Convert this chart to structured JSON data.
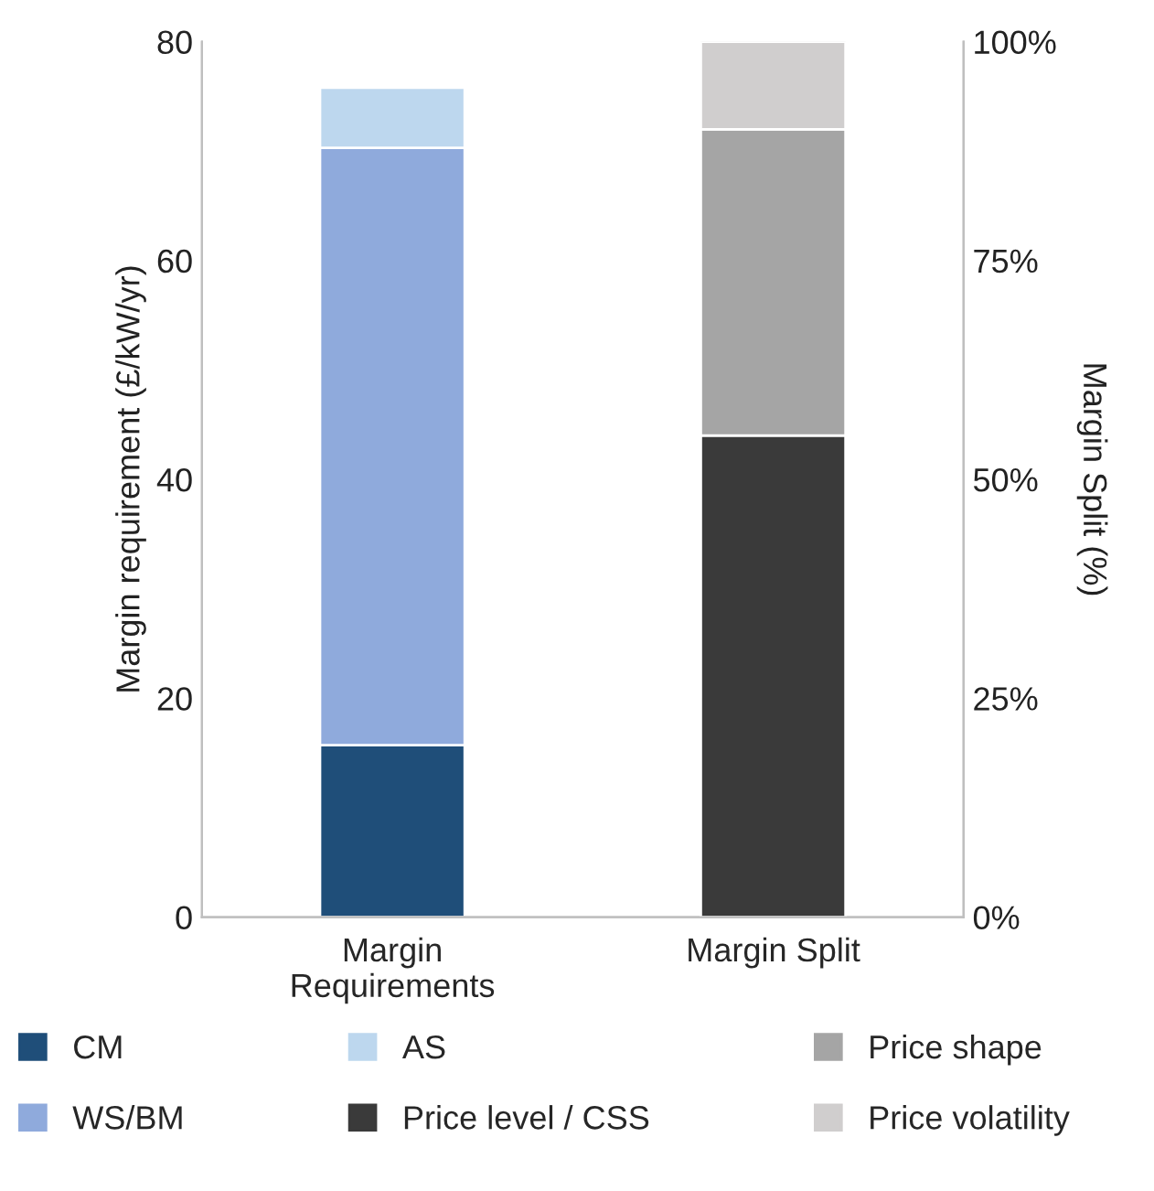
{
  "chart_data": {
    "type": "bar",
    "stacked": true,
    "categories": [
      "Margin\nRequirements",
      "Margin Split"
    ],
    "ylabel": "Margin requirement (£/kW/yr)",
    "y2label": "Margin Split (%)",
    "ylim": [
      0,
      80
    ],
    "yticks": [
      0,
      20,
      40,
      60,
      80
    ],
    "y2lim": [
      0,
      100
    ],
    "y2ticks": [
      {
        "value": 0,
        "label": "0%"
      },
      {
        "value": 25,
        "label": "25%"
      },
      {
        "value": 50,
        "label": "50%"
      },
      {
        "value": 75,
        "label": "75%"
      },
      {
        "value": 100,
        "label": "100%"
      }
    ],
    "legend": "bottom",
    "grid": false,
    "series": [
      {
        "name": "CM",
        "color": "#1f4e79",
        "values": [
          15.7,
          null
        ]
      },
      {
        "name": "WS/BM",
        "color": "#8faadc",
        "values": [
          54.6,
          null
        ]
      },
      {
        "name": "AS",
        "color": "#bdd7ee",
        "values": [
          5.5,
          null
        ]
      },
      {
        "name": "Price level / CSS",
        "color": "#3a3a3a",
        "values": [
          null,
          55
        ],
        "axis": "y2"
      },
      {
        "name": "Price shape",
        "color": "#a5a5a5",
        "values": [
          null,
          35
        ],
        "axis": "y2"
      },
      {
        "name": "Price volatility",
        "color": "#d0cece",
        "values": [
          null,
          10
        ],
        "axis": "y2"
      }
    ]
  }
}
